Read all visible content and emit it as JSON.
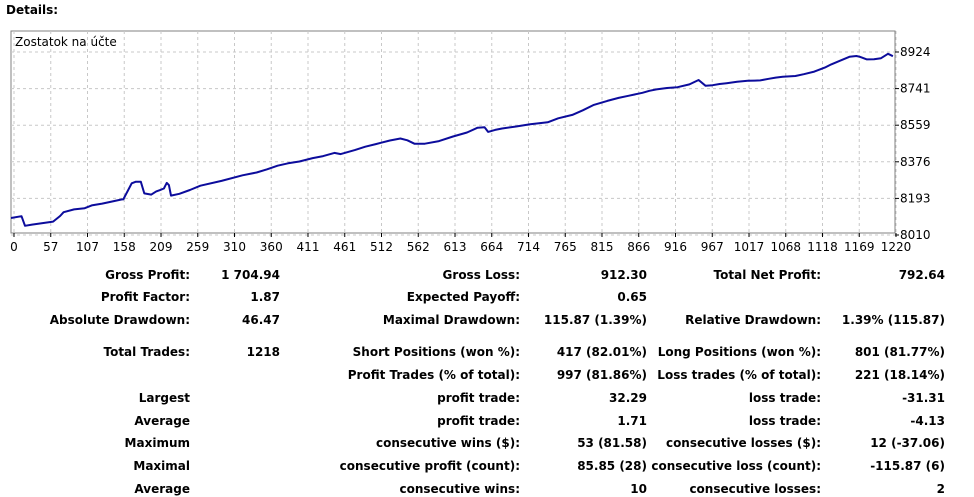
{
  "details_label": "Details:",
  "chart_data": {
    "type": "line",
    "title": "Zostatok na účte",
    "x_ticks": [
      "0",
      "57",
      "107",
      "158",
      "209",
      "259",
      "310",
      "360",
      "411",
      "461",
      "512",
      "562",
      "613",
      "664",
      "714",
      "765",
      "815",
      "866",
      "916",
      "967",
      "1017",
      "1068",
      "1118",
      "1169",
      "1220"
    ],
    "y_ticks": [
      "8924",
      "8741",
      "8559",
      "8376",
      "8193",
      "8010"
    ],
    "xlim": [
      0,
      1260
    ],
    "ylim": [
      8010,
      8924
    ],
    "grid": true,
    "line_color": "#0c0c9c",
    "series": [
      {
        "x": [
          0,
          15,
          20,
          30,
          50,
          60,
          70,
          75,
          90,
          105,
          115,
          130,
          145,
          158,
          160,
          172,
          178,
          185,
          190,
          200,
          207,
          212,
          218,
          220,
          222,
          225,
          228,
          240,
          255,
          270,
          300,
          330,
          350,
          365,
          380,
          395,
          411,
          430,
          445,
          461,
          470,
          490,
          505,
          520,
          540,
          555,
          565,
          575,
          590,
          610,
          630,
          650,
          665,
          675,
          680,
          690,
          700,
          720,
          740,
          765,
          780,
          800,
          815,
          830,
          850,
          866,
          880,
          900,
          910,
          920,
          935,
          950,
          967,
          980,
          990,
          1000,
          1010,
          1020,
          1035,
          1050,
          1060,
          1068,
          1080,
          1090,
          1100,
          1118,
          1130,
          1145,
          1160,
          1169,
          1180,
          1195,
          1205,
          1210,
          1220,
          1230,
          1240,
          1250,
          1257
        ],
        "y": [
          8095,
          8104,
          8056,
          8062,
          8072,
          8077,
          8105,
          8124,
          8138,
          8144,
          8158,
          8167,
          8178,
          8188,
          8188,
          8268,
          8276,
          8276,
          8218,
          8212,
          8228,
          8234,
          8242,
          8256,
          8270,
          8259,
          8207,
          8216,
          8235,
          8256,
          8280,
          8308,
          8322,
          8338,
          8356,
          8368,
          8377,
          8394,
          8404,
          8420,
          8414,
          8434,
          8451,
          8464,
          8482,
          8492,
          8483,
          8466,
          8466,
          8479,
          8502,
          8522,
          8546,
          8548,
          8525,
          8535,
          8542,
          8552,
          8563,
          8573,
          8593,
          8610,
          8633,
          8659,
          8680,
          8695,
          8705,
          8720,
          8730,
          8737,
          8744,
          8748,
          8762,
          8784,
          8755,
          8758,
          8764,
          8768,
          8775,
          8780,
          8781,
          8782,
          8790,
          8796,
          8800,
          8804,
          8813,
          8826,
          8846,
          8862,
          8878,
          8900,
          8904,
          8900,
          8887,
          8888,
          8893,
          8915,
          8903
        ]
      }
    ]
  },
  "stats": {
    "gross_profit_label": "Gross Profit:",
    "gross_profit": "1 704.94",
    "gross_loss_label": "Gross Loss:",
    "gross_loss": "912.30",
    "total_net_profit_label": "Total Net Profit:",
    "total_net_profit": "792.64",
    "profit_factor_label": "Profit Factor:",
    "profit_factor": "1.87",
    "expected_payoff_label": "Expected Payoff:",
    "expected_payoff": "0.65",
    "absolute_drawdown_label": "Absolute Drawdown:",
    "absolute_drawdown": "46.47",
    "maximal_drawdown_label": "Maximal Drawdown:",
    "maximal_drawdown": "115.87 (1.39%)",
    "relative_drawdown_label": "Relative Drawdown:",
    "relative_drawdown": "1.39% (115.87)",
    "total_trades_label": "Total Trades:",
    "total_trades": "1218",
    "short_positions_label": "Short Positions (won %):",
    "short_positions": "417 (82.01%)",
    "long_positions_label": "Long Positions (won %):",
    "long_positions": "801 (81.77%)",
    "profit_trades_label": "Profit Trades (% of total):",
    "profit_trades": "997 (81.86%)",
    "loss_trades_label": "Loss trades (% of total):",
    "loss_trades": "221 (18.14%)",
    "largest_label": "Largest",
    "largest_profit_label": "profit trade:",
    "largest_profit": "32.29",
    "largest_loss_label": "loss trade:",
    "largest_loss": "-31.31",
    "average_label": "Average",
    "average_profit_label": "profit trade:",
    "average_profit": "1.71",
    "average_loss_label": "loss trade:",
    "average_loss": "-4.13",
    "maximum_label": "Maximum",
    "max_cons_wins_label": "consecutive wins ($):",
    "max_cons_wins": "53 (81.58)",
    "max_cons_losses_label": "consecutive losses ($):",
    "max_cons_losses": "12 (-37.06)",
    "maximal_label": "Maximal",
    "maximal_cons_profit_label": "consecutive profit (count):",
    "maximal_cons_profit": "85.85 (28)",
    "maximal_cons_loss_label": "consecutive loss (count):",
    "maximal_cons_loss": "-115.87 (6)",
    "average2_label": "Average",
    "avg_cons_wins_label": "consecutive wins:",
    "avg_cons_wins": "10",
    "avg_cons_losses_label": "consecutive losses:",
    "avg_cons_losses": "2"
  }
}
